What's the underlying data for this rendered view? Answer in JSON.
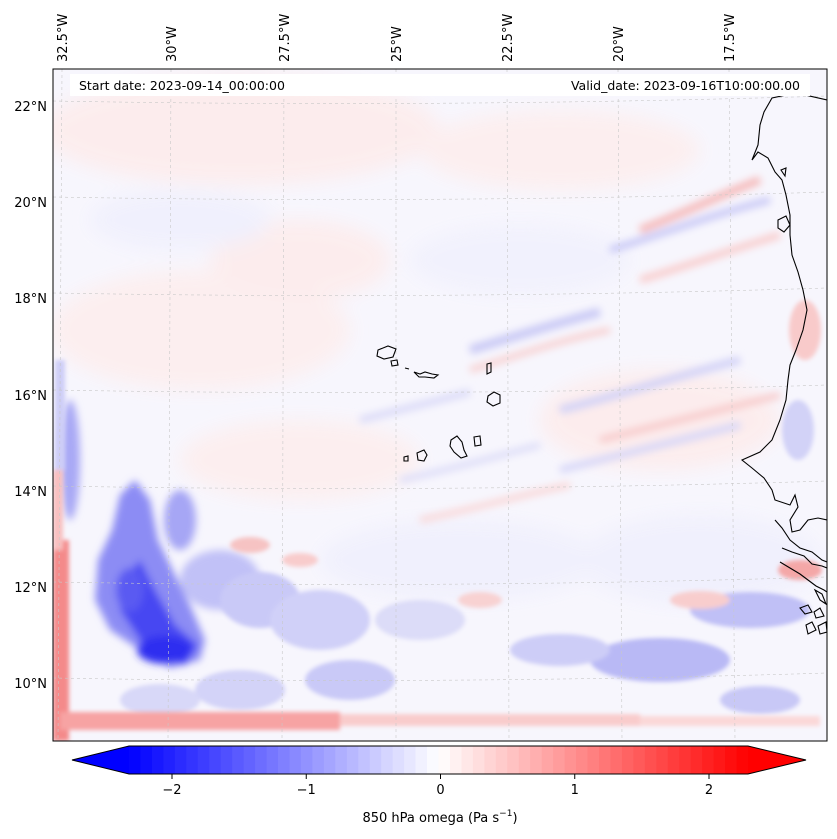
{
  "map": {
    "header": {
      "start_date": "Start date: 2023-09-14_00:00:00",
      "valid_date": "Valid_date: 2023-09-16T10:00:00.00"
    },
    "lon_labels": [
      "32.5°W",
      "30°W",
      "27.5°W",
      "25°W",
      "22.5°W",
      "20°W",
      "17.5°W"
    ],
    "lat_labels": [
      "22°N",
      "20°N",
      "18°N",
      "16°N",
      "14°N",
      "12°N",
      "10°N"
    ],
    "colorbar": {
      "ticks": [
        -2,
        -1,
        0,
        1,
        2
      ],
      "tick_labels": [
        "−2",
        "−1",
        "0",
        "1",
        "2"
      ],
      "label": "850 hPa omega (Pa s",
      "label_sup": "−1",
      "label_end": ")",
      "range": [
        -2.7,
        2.7
      ],
      "colormap": "bwr",
      "extend": "both"
    },
    "colors": {
      "min": "#0000ff",
      "mid": "#ffffff",
      "max": "#ff0000"
    }
  }
}
